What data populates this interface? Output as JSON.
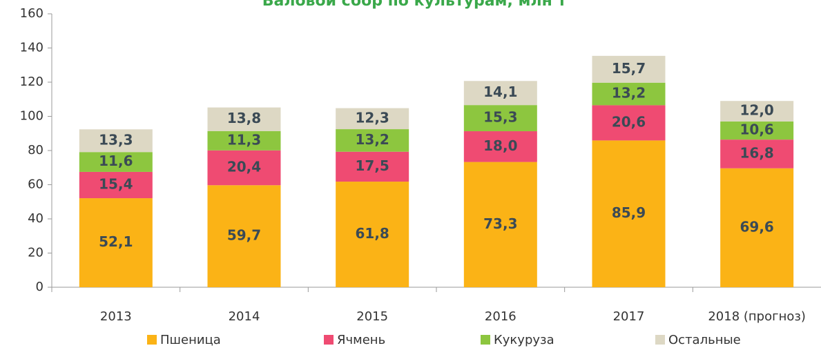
{
  "chart_data": {
    "type": "stacked_bar",
    "title": "Валовой сбор по культурам, млн т",
    "categories": [
      "2013",
      "2014",
      "2015",
      "2016",
      "2017",
      "2018 (прогноз)"
    ],
    "series": [
      {
        "name": "Пшеница",
        "color": "#fbb316",
        "values": [
          52.1,
          59.7,
          61.8,
          73.3,
          85.9,
          69.6
        ],
        "value_labels": [
          "52,1",
          "59,7",
          "61,8",
          "73,3",
          "85,9",
          "69,6"
        ]
      },
      {
        "name": "Ячмень",
        "color": "#ef4b72",
        "values": [
          15.4,
          20.4,
          17.5,
          18.0,
          20.6,
          16.8
        ],
        "value_labels": [
          "15,4",
          "20,4",
          "17,5",
          "18,0",
          "20,6",
          "16,8"
        ]
      },
      {
        "name": "Кукуруза",
        "color": "#8dc63f",
        "values": [
          11.6,
          11.3,
          13.2,
          15.3,
          13.2,
          10.6
        ],
        "value_labels": [
          "11,6",
          "11,3",
          "13,2",
          "15,3",
          "13,2",
          "10,6"
        ]
      },
      {
        "name": "Остальные",
        "color": "#ddd8c4",
        "values": [
          13.3,
          13.8,
          12.3,
          14.1,
          15.7,
          12.0
        ],
        "value_labels": [
          "13,3",
          "13,8",
          "12,3",
          "14,1",
          "15,7",
          "12,0"
        ]
      }
    ],
    "ylim": [
      0,
      160
    ],
    "yticks": [
      0,
      20,
      40,
      60,
      80,
      100,
      120,
      140,
      160
    ],
    "legend": "bottom"
  }
}
